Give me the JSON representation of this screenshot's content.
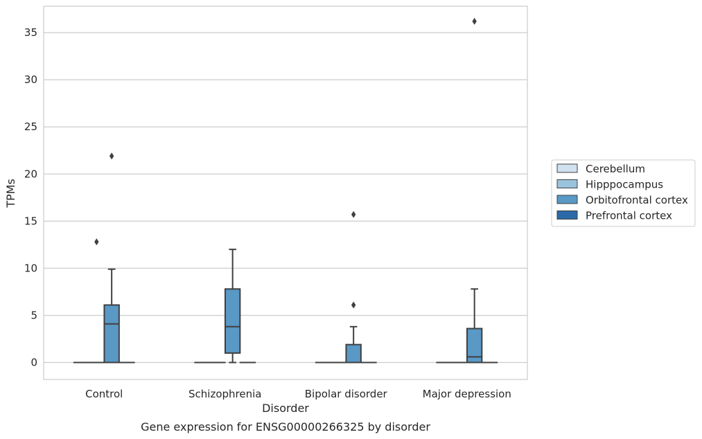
{
  "chart_data": {
    "type": "box",
    "title": "Gene expression for ENSG00000266325 by disorder",
    "xlabel": "Disorder",
    "ylabel": "TPMs",
    "ylim": [
      -1.8,
      37.8
    ],
    "yticks": [
      0,
      5,
      10,
      15,
      20,
      25,
      30,
      35
    ],
    "grid": "horizontal",
    "legend_position": "right",
    "categories": [
      "Control",
      "Schizophrenia",
      "Bipolar disorder",
      "Major depression"
    ],
    "series": [
      {
        "name": "Cerebellum",
        "color": "#d1e1ef",
        "boxes": [
          {
            "q1": 0,
            "median": 0,
            "q3": 0,
            "whisker_low": 0,
            "whisker_high": 0,
            "outliers": []
          },
          {
            "q1": 0,
            "median": 0,
            "q3": 0,
            "whisker_low": 0,
            "whisker_high": 0,
            "outliers": []
          },
          {
            "q1": 0,
            "median": 0,
            "q3": 0,
            "whisker_low": 0,
            "whisker_high": 0,
            "outliers": []
          },
          {
            "q1": 0,
            "median": 0,
            "q3": 0,
            "whisker_low": 0,
            "whisker_high": 0,
            "outliers": []
          }
        ]
      },
      {
        "name": "Hipppocampus",
        "color": "#9ac3de",
        "boxes": [
          {
            "q1": 0,
            "median": 0,
            "q3": 0,
            "whisker_low": 0,
            "whisker_high": 0,
            "outliers": [
              12.8
            ]
          },
          {
            "q1": 0,
            "median": 0,
            "q3": 0,
            "whisker_low": 0,
            "whisker_high": 0,
            "outliers": []
          },
          {
            "q1": 0,
            "median": 0,
            "q3": 0,
            "whisker_low": 0,
            "whisker_high": 0,
            "outliers": []
          },
          {
            "q1": 0,
            "median": 0,
            "q3": 0,
            "whisker_low": 0,
            "whisker_high": 0,
            "outliers": []
          }
        ]
      },
      {
        "name": "Orbitofrontal cortex",
        "color": "#5a98c6",
        "boxes": [
          {
            "q1": 0,
            "median": 4.1,
            "q3": 6.1,
            "whisker_low": 0,
            "whisker_high": 9.9,
            "outliers": [
              21.9
            ]
          },
          {
            "q1": 1.0,
            "median": 3.8,
            "q3": 7.8,
            "whisker_low": 0,
            "whisker_high": 12.0,
            "outliers": []
          },
          {
            "q1": 0,
            "median": 0,
            "q3": 1.9,
            "whisker_low": 0,
            "whisker_high": 3.8,
            "outliers": [
              6.1,
              15.7
            ]
          },
          {
            "q1": 0,
            "median": 0.6,
            "q3": 3.6,
            "whisker_low": 0,
            "whisker_high": 7.8,
            "outliers": [
              36.2
            ]
          }
        ]
      },
      {
        "name": "Prefrontal cortex",
        "color": "#2a6aa8",
        "boxes": [
          {
            "q1": 0,
            "median": 0,
            "q3": 0,
            "whisker_low": 0,
            "whisker_high": 0,
            "outliers": []
          },
          {
            "q1": 0,
            "median": 0,
            "q3": 0,
            "whisker_low": 0,
            "whisker_high": 0,
            "outliers": []
          },
          {
            "q1": 0,
            "median": 0,
            "q3": 0,
            "whisker_low": 0,
            "whisker_high": 0,
            "outliers": []
          },
          {
            "q1": 0,
            "median": 0,
            "q3": 0,
            "whisker_low": 0,
            "whisker_high": 0,
            "outliers": []
          }
        ]
      }
    ]
  }
}
